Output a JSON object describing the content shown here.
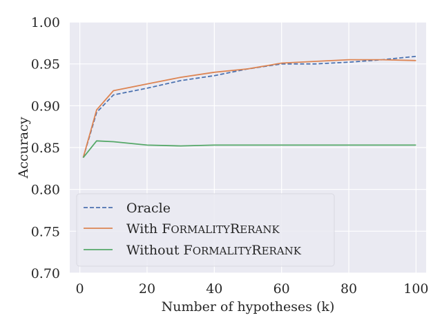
{
  "chart_data": {
    "type": "line",
    "title": "",
    "xlabel": "Number of hypotheses (k)",
    "ylabel": "Accuracy",
    "xlim": [
      -3,
      103
    ],
    "ylim": [
      0.7,
      1.0
    ],
    "xticks": [
      0,
      20,
      40,
      60,
      80,
      100
    ],
    "yticks": [
      0.7,
      0.75,
      0.8,
      0.85,
      0.9,
      0.95,
      1.0
    ],
    "xtick_labels": [
      "0",
      "20",
      "40",
      "60",
      "80",
      "100"
    ],
    "ytick_labels": [
      "0.70",
      "0.75",
      "0.80",
      "0.85",
      "0.90",
      "0.95",
      "1.00"
    ],
    "grid": true,
    "legend_position": "lower-left",
    "series": [
      {
        "name": "Oracle",
        "style": "dashed",
        "color": "#4c72b0",
        "x": [
          1,
          5,
          10,
          20,
          30,
          40,
          50,
          60,
          70,
          80,
          90,
          100
        ],
        "values": [
          0.838,
          0.892,
          0.913,
          0.921,
          0.93,
          0.936,
          0.944,
          0.95,
          0.95,
          0.952,
          0.955,
          0.959
        ]
      },
      {
        "name": "With FormalityRerank",
        "name_prefix": "With ",
        "name_smallcaps": [
          [
            "F",
            "ORMALITY"
          ],
          [
            "R",
            "ERANK"
          ]
        ],
        "style": "solid",
        "color": "#dd8452",
        "x": [
          1,
          5,
          10,
          20,
          30,
          40,
          50,
          60,
          70,
          80,
          90,
          100
        ],
        "values": [
          0.838,
          0.895,
          0.918,
          0.926,
          0.934,
          0.94,
          0.944,
          0.951,
          0.953,
          0.955,
          0.955,
          0.954
        ]
      },
      {
        "name": "Without FormalityRerank",
        "name_prefix": "Without ",
        "name_smallcaps": [
          [
            "F",
            "ORMALITY"
          ],
          [
            "R",
            "ERANK"
          ]
        ],
        "style": "solid",
        "color": "#55a868",
        "x": [
          1,
          5,
          10,
          20,
          30,
          40,
          50,
          60,
          70,
          80,
          90,
          100
        ],
        "values": [
          0.838,
          0.858,
          0.857,
          0.853,
          0.852,
          0.853,
          0.853,
          0.853,
          0.853,
          0.853,
          0.853,
          0.853
        ]
      }
    ]
  }
}
